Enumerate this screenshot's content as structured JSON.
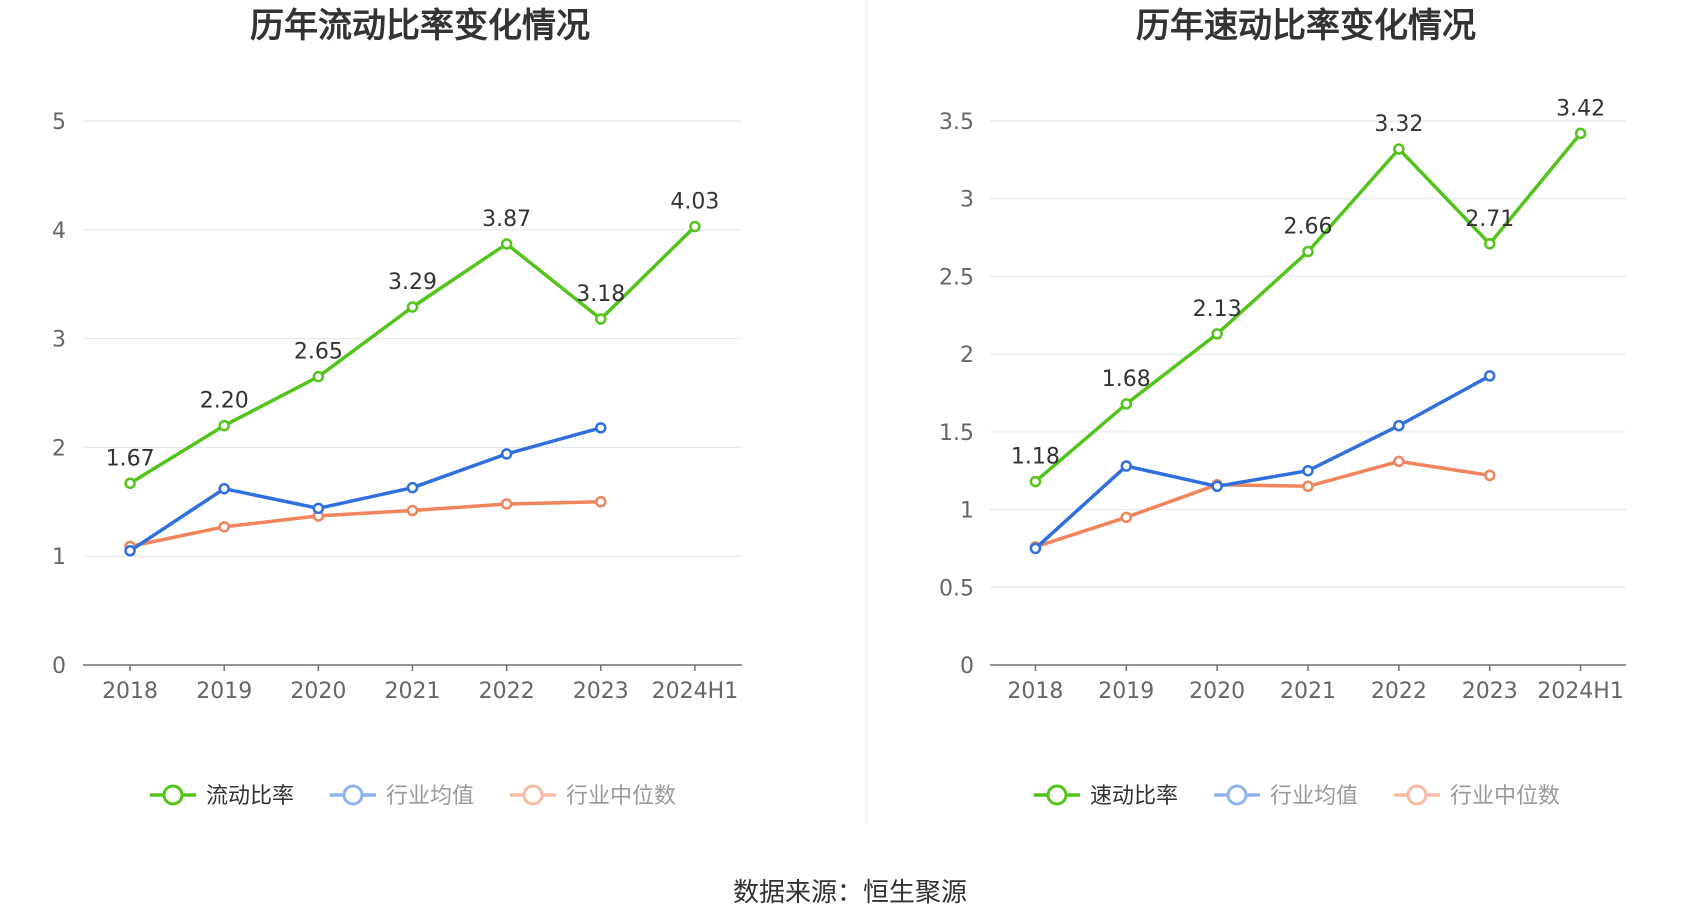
{
  "source_text": "数据来源：恒生聚源",
  "chart_data": [
    {
      "type": "line",
      "title": "历年流动比率变化情况",
      "categories": [
        "2018",
        "2019",
        "2020",
        "2021",
        "2022",
        "2023",
        "2024H1"
      ],
      "ylim": [
        0,
        5
      ],
      "yticks": [
        "0",
        "1",
        "2",
        "3",
        "4",
        "5"
      ],
      "grid": true,
      "legend_position": "bottom-center",
      "series": [
        {
          "name": "流动比率",
          "color": "#52c41a",
          "values": [
            1.67,
            2.2,
            2.65,
            3.29,
            3.87,
            3.18,
            4.03
          ],
          "labels": [
            "1.67",
            "2.20",
            "2.65",
            "3.29",
            "3.87",
            "3.18",
            "4.03"
          ]
        },
        {
          "name": "行业均值",
          "color": "#2f6fde",
          "legend_color": "#8eb3ef",
          "values": [
            1.05,
            1.62,
            1.44,
            1.63,
            1.94,
            2.18,
            null
          ]
        },
        {
          "name": "行业中位数",
          "color": "#f0845c",
          "legend_color": "#f7bca5",
          "values": [
            1.09,
            1.27,
            1.37,
            1.42,
            1.48,
            1.5,
            null
          ]
        }
      ]
    },
    {
      "type": "line",
      "title": "历年速动比率变化情况",
      "categories": [
        "2018",
        "2019",
        "2020",
        "2021",
        "2022",
        "2023",
        "2024H1"
      ],
      "ylim": [
        0,
        3.5
      ],
      "yticks": [
        "0",
        "0.5",
        "1",
        "1.5",
        "2",
        "2.5",
        "3",
        "3.5"
      ],
      "grid": true,
      "legend_position": "bottom-center",
      "series": [
        {
          "name": "速动比率",
          "color": "#52c41a",
          "values": [
            1.18,
            1.68,
            2.13,
            2.66,
            3.32,
            2.71,
            3.42
          ],
          "labels": [
            "1.18",
            "1.68",
            "2.13",
            "2.66",
            "3.32",
            "2.71",
            "3.42"
          ]
        },
        {
          "name": "行业均值",
          "color": "#2f6fde",
          "legend_color": "#8eb3ef",
          "values": [
            0.75,
            1.28,
            1.15,
            1.25,
            1.54,
            1.86,
            null
          ]
        },
        {
          "name": "行业中位数",
          "color": "#f0845c",
          "legend_color": "#f7bca5",
          "values": [
            0.76,
            0.95,
            1.16,
            1.15,
            1.31,
            1.22,
            null
          ]
        }
      ]
    }
  ]
}
